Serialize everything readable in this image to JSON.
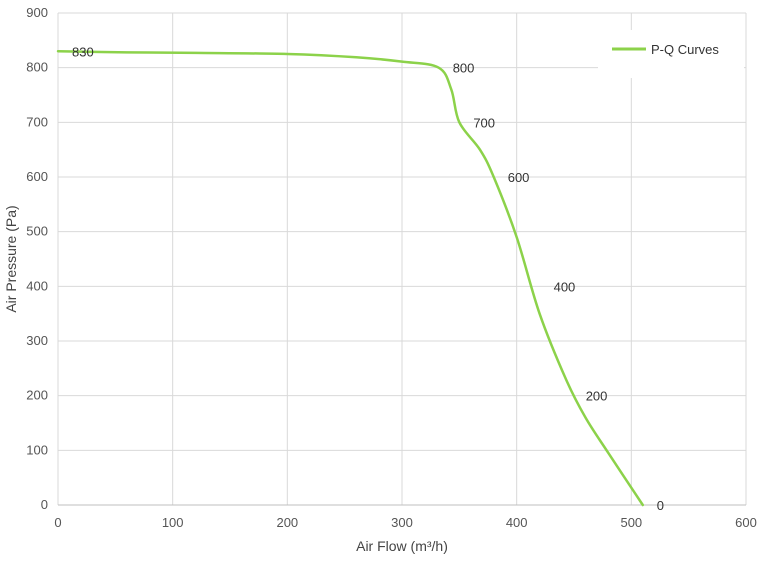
{
  "chart_data": {
    "type": "line",
    "title": "",
    "xlabel": "Air Flow  (m³/h)",
    "ylabel": "Air Pressure  (Pa)",
    "xlim": [
      0,
      600
    ],
    "ylim": [
      0,
      900
    ],
    "x_ticks": [
      0,
      100,
      200,
      300,
      400,
      500,
      600
    ],
    "y_ticks": [
      0,
      100,
      200,
      300,
      400,
      500,
      600,
      700,
      800,
      900
    ],
    "grid": true,
    "legend_position": "top-right",
    "series": [
      {
        "name": "P-Q Curves",
        "color": "#8cd24a",
        "points": [
          {
            "x": 0,
            "y": 830
          },
          {
            "x": 60,
            "y": 828
          },
          {
            "x": 120,
            "y": 827
          },
          {
            "x": 200,
            "y": 825
          },
          {
            "x": 260,
            "y": 819
          },
          {
            "x": 300,
            "y": 811
          },
          {
            "x": 332,
            "y": 800
          },
          {
            "x": 343,
            "y": 760
          },
          {
            "x": 350,
            "y": 700
          },
          {
            "x": 368,
            "y": 650
          },
          {
            "x": 380,
            "y": 600
          },
          {
            "x": 400,
            "y": 490
          },
          {
            "x": 420,
            "y": 350
          },
          {
            "x": 443,
            "y": 230
          },
          {
            "x": 460,
            "y": 160
          },
          {
            "x": 480,
            "y": 95
          },
          {
            "x": 510,
            "y": 0
          }
        ]
      }
    ],
    "annotations": [
      {
        "text": "830",
        "x": 0,
        "y": 830,
        "anchor": "right"
      },
      {
        "text": "800",
        "x": 332,
        "y": 800,
        "anchor": "right"
      },
      {
        "text": "700",
        "x": 350,
        "y": 700,
        "anchor": "right"
      },
      {
        "text": "600",
        "x": 380,
        "y": 600,
        "anchor": "right"
      },
      {
        "text": "400",
        "x": 420,
        "y": 400,
        "anchor": "right"
      },
      {
        "text": "200",
        "x": 448,
        "y": 200,
        "anchor": "right"
      },
      {
        "text": "0",
        "x": 510,
        "y": 0,
        "anchor": "right"
      }
    ]
  }
}
